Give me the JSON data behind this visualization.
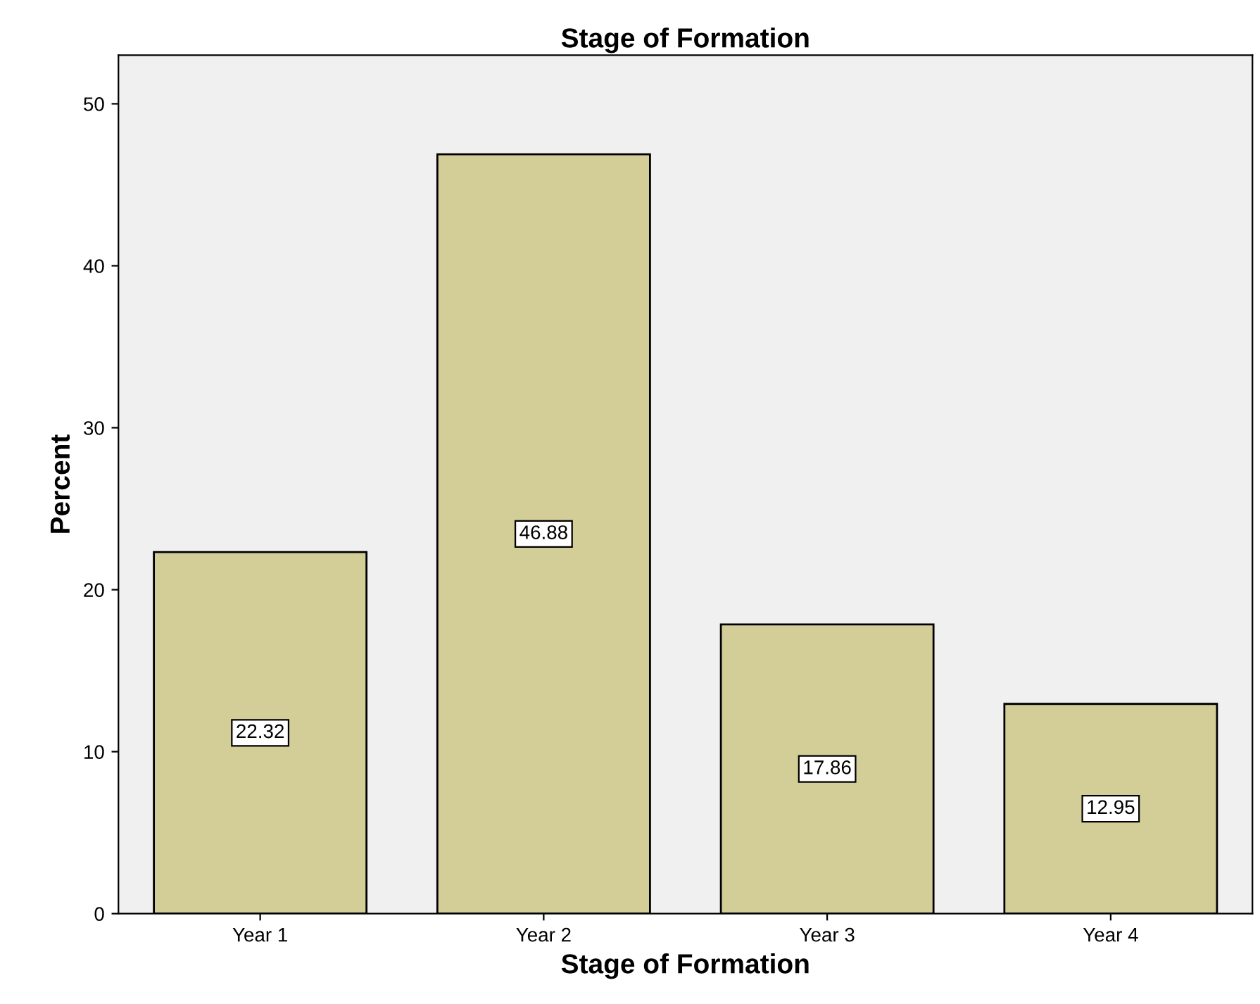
{
  "chart_data": {
    "type": "bar",
    "title": "Stage of Formation",
    "xlabel": "Stage of Formation",
    "ylabel": "Percent",
    "categories": [
      "Year 1",
      "Year 2",
      "Year 3",
      "Year 4"
    ],
    "values": [
      22.32,
      46.88,
      17.86,
      12.95
    ],
    "color": "#d3ce97",
    "ylim": [
      0,
      53
    ],
    "yticks": [
      0,
      10,
      20,
      30,
      40,
      50
    ],
    "grid": false,
    "data_labels": true
  }
}
